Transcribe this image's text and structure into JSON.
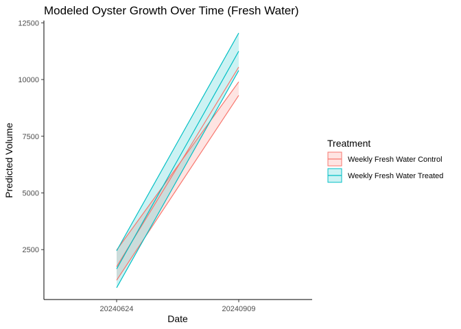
{
  "chart_data": {
    "type": "area",
    "title": "Modeled Oyster Growth Over Time (Fresh Water)",
    "xlabel": "Date",
    "ylabel": "Predicted Volume",
    "categories": [
      "20240624",
      "20240909"
    ],
    "ylim": [
      300,
      12600
    ],
    "yticks": [
      2500,
      5000,
      7500,
      10000,
      12500
    ],
    "grid": false,
    "legend": {
      "title": "Treatment",
      "position": "right"
    },
    "series": [
      {
        "name": "Weekly Fresh Water Control",
        "color": "#F8766D",
        "fill": "#F8766D",
        "fit": [
          1750,
          10550
        ],
        "lower": [
          1150,
          9300
        ],
        "upper": [
          2480,
          9900
        ]
      },
      {
        "name": "Weekly Fresh Water Treated",
        "color": "#00BFC4",
        "fill": "#00BFC4",
        "fit": [
          1650,
          11250
        ],
        "lower": [
          820,
          10400
        ],
        "upper": [
          2450,
          12050
        ]
      }
    ]
  }
}
